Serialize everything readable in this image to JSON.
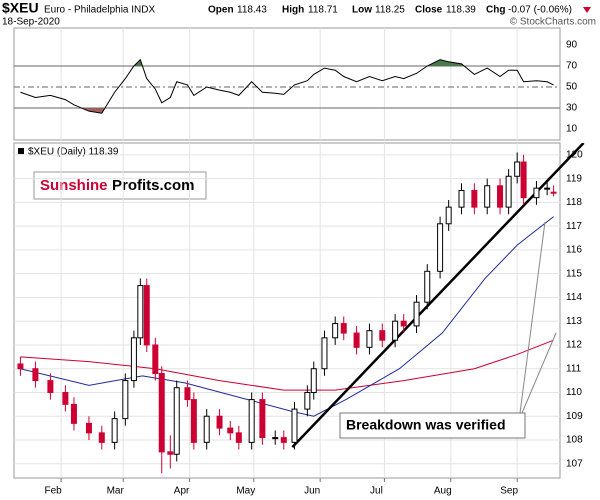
{
  "chart_data": {
    "type": "candlestick",
    "header": {
      "symbol": "$XEU",
      "name": "Euro - Philadelphia INDX",
      "date": "18-Sep-2020",
      "open_label": "Open",
      "open": "118.43",
      "high_label": "High",
      "high": "118.71",
      "low_label": "Low",
      "low": "118.25",
      "close_label": "Close",
      "close": "118.39",
      "chg_label": "Chg",
      "chg": "-0.07 (-0.06%)",
      "copyright": "© StockCharts.com"
    },
    "legend": "$XEU (Daily) 118.39",
    "watermark": {
      "part1": "Sunshine",
      "part2": "Profits.com"
    },
    "annotation": "Breakdown was verified",
    "x": [
      13,
      20,
      27,
      34,
      38,
      45,
      51,
      57,
      62,
      66,
      69,
      72,
      76,
      79,
      83,
      86,
      91,
      94,
      100,
      106,
      111,
      115,
      121,
      126,
      132,
      136,
      141,
      147,
      150,
      155,
      160,
      164,
      170,
      176,
      182,
      188,
      192,
      198,
      203,
      209,
      213,
      219,
      225,
      231,
      237,
      241,
      245,
      248,
      254,
      259,
      262
    ],
    "open": [
      111.2,
      111.0,
      110.5,
      110.0,
      109.5,
      108.7,
      108.3,
      107.9,
      108.9,
      110.5,
      112.3,
      114.5,
      112.0,
      110.8,
      107.5,
      107.4,
      110.2,
      109.7,
      107.9,
      109.0,
      108.5,
      108.3,
      107.9,
      109.7,
      108.1,
      108.1,
      107.9,
      109.3,
      110.0,
      111.0,
      112.3,
      112.9,
      112.5,
      111.9,
      112.6,
      112.2,
      113.0,
      112.8,
      113.8,
      115.1,
      117.1,
      117.8,
      118.5,
      117.8,
      118.7,
      117.8,
      119.1,
      119.7,
      118.2,
      118.6,
      118.43
    ],
    "high": [
      111.5,
      111.3,
      110.8,
      110.3,
      109.8,
      109.0,
      108.6,
      109.2,
      110.8,
      112.6,
      114.8,
      114.8,
      112.3,
      111.1,
      108.2,
      110.5,
      110.5,
      110.0,
      109.3,
      109.3,
      108.8,
      108.6,
      110.0,
      110.0,
      108.4,
      108.4,
      109.6,
      110.3,
      111.3,
      112.6,
      113.2,
      113.2,
      112.8,
      112.9,
      112.9,
      113.3,
      113.3,
      114.1,
      115.4,
      117.4,
      118.1,
      118.8,
      118.8,
      119.0,
      119.0,
      119.4,
      120.1,
      120.0,
      118.9,
      118.9,
      118.71
    ],
    "low": [
      110.7,
      110.2,
      109.7,
      109.2,
      108.4,
      108.0,
      107.6,
      107.6,
      108.6,
      110.2,
      112.0,
      111.7,
      110.5,
      106.6,
      106.8,
      107.1,
      109.4,
      107.6,
      107.6,
      108.2,
      108.0,
      107.6,
      107.6,
      107.8,
      107.8,
      107.6,
      107.6,
      109.0,
      109.7,
      110.7,
      112.0,
      112.2,
      111.6,
      111.6,
      111.9,
      111.9,
      112.5,
      112.5,
      113.5,
      114.8,
      116.8,
      117.5,
      117.5,
      117.5,
      117.5,
      117.5,
      118.8,
      117.9,
      117.9,
      118.3,
      118.25
    ],
    "close": [
      111.0,
      110.5,
      110.0,
      109.5,
      108.7,
      108.3,
      107.9,
      108.9,
      110.5,
      112.3,
      114.5,
      112.0,
      110.8,
      107.5,
      107.4,
      110.2,
      109.7,
      107.9,
      109.0,
      108.5,
      108.3,
      107.9,
      109.7,
      108.1,
      108.1,
      107.9,
      109.3,
      110.0,
      111.0,
      112.3,
      112.9,
      112.5,
      111.9,
      112.6,
      112.2,
      113.0,
      112.8,
      113.8,
      115.1,
      117.1,
      117.8,
      118.5,
      117.8,
      118.7,
      117.8,
      119.1,
      119.7,
      118.2,
      118.6,
      118.6,
      118.39
    ],
    "up_color": "#000000",
    "down_color": "#cc0033",
    "overlays": [
      {
        "color": "#cc0033",
        "x": [
          13,
          45,
          76,
          106,
          136,
          160,
          192,
          225,
          245,
          262
        ],
        "values": [
          111.5,
          111.3,
          111.0,
          110.5,
          110.1,
          110.1,
          110.5,
          111.0,
          111.6,
          112.2
        ]
      },
      {
        "color": "#1f2a9a",
        "x": [
          13,
          45,
          70,
          90,
          115,
          140,
          150,
          165,
          190,
          210,
          230,
          245,
          262
        ],
        "values": [
          111.0,
          110.3,
          110.7,
          110.4,
          109.8,
          109.2,
          109.0,
          109.7,
          111.0,
          112.5,
          114.8,
          116.2,
          117.4
        ]
      }
    ],
    "trend_line": {
      "color": "#000000",
      "x": [
        140,
        276
      ],
      "values": [
        107.7,
        120.5
      ]
    },
    "xlim": [
      10,
      265
    ],
    "xticks": [
      {
        "value": 32,
        "label": "Feb"
      },
      {
        "value": 61,
        "label": "Mar"
      },
      {
        "value": 92,
        "label": "Apr"
      },
      {
        "value": 122,
        "label": "May"
      },
      {
        "value": 153,
        "label": "Jun"
      },
      {
        "value": 183,
        "label": "Jul"
      },
      {
        "value": 214,
        "label": "Aug"
      },
      {
        "value": 245,
        "label": "Sep"
      }
    ],
    "ylim": [
      106.4,
      120.5
    ],
    "yticks": [
      107,
      108,
      109,
      110,
      111,
      112,
      113,
      114,
      115,
      116,
      117,
      118,
      119,
      120
    ],
    "grid": true,
    "rsi": {
      "color": "#000000",
      "over_color": "#4a7a4a",
      "under_color": "#a0605a",
      "values": [
        45,
        40,
        42,
        38,
        33,
        27,
        25,
        45,
        58,
        70,
        76,
        58,
        48,
        35,
        40,
        55,
        52,
        42,
        50,
        47,
        45,
        42,
        55,
        45,
        44,
        43,
        52,
        56,
        62,
        68,
        66,
        60,
        55,
        60,
        56,
        60,
        58,
        63,
        70,
        76,
        74,
        72,
        62,
        68,
        60,
        66,
        66,
        55,
        56,
        55,
        52
      ],
      "ylim": [
        0,
        100
      ],
      "yticks": [
        10,
        30,
        50,
        70,
        90
      ],
      "overbought": 70,
      "midline": 50,
      "oversold": 30
    }
  }
}
